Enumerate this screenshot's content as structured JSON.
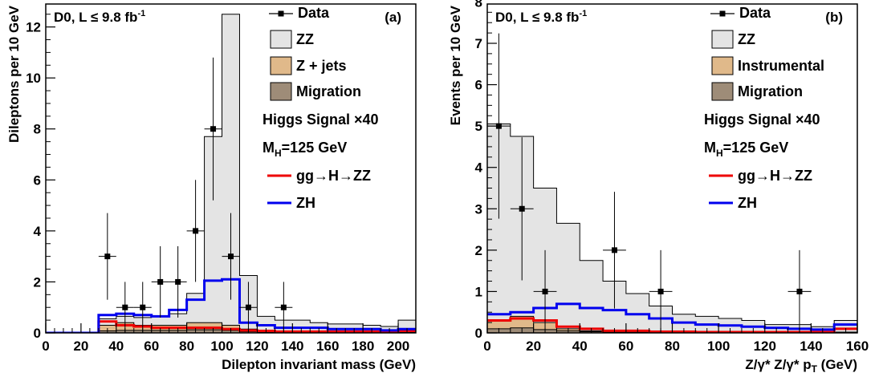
{
  "chart_data": [
    {
      "type": "histogram",
      "panel": "(a)",
      "xlabel": "Dilepton invariant mass (GeV)",
      "ylabel": "Dileptons per 10 GeV",
      "xlim": [
        0,
        210
      ],
      "ylim": [
        0,
        12.9
      ],
      "xticks": [
        0,
        20,
        40,
        60,
        80,
        100,
        120,
        140,
        160,
        180,
        200
      ],
      "yticks": [
        0,
        2,
        4,
        6,
        8,
        10,
        12
      ],
      "experiment_label": "D0, L ≤ 9.8 fb",
      "lumi_superscript": "-1",
      "legend": {
        "data": "Data",
        "zz": "ZZ",
        "bkg2": "Z + jets",
        "migration": "Migration",
        "signal_title": "Higgs Signal ×40",
        "mass_label": "M",
        "mass_sub": "H",
        "mass_value": "=125 GeV",
        "ggh": "gg→H→ZZ",
        "zh": "ZH"
      },
      "bins": [
        0,
        30,
        40,
        50,
        60,
        70,
        80,
        90,
        100,
        110,
        120,
        130,
        140,
        150,
        160,
        170,
        180,
        190,
        200,
        210
      ],
      "stack_total": [
        0,
        0.55,
        0.65,
        0.6,
        0.65,
        0.75,
        1.55,
        7.7,
        12.5,
        2.25,
        0.65,
        0.5,
        0.5,
        0.4,
        0.35,
        0.35,
        0.3,
        0.25,
        0.5
      ],
      "bkg2_total": [
        0,
        0.3,
        0.4,
        0.3,
        0.3,
        0.3,
        0.4,
        0.4,
        0.3,
        0.15,
        0.1,
        0.05,
        0.05,
        0.05,
        0.05,
        0.05,
        0.05,
        0.05,
        0.05
      ],
      "migration_total": [
        0,
        0.08,
        0.1,
        0.1,
        0.1,
        0.1,
        0.12,
        0.12,
        0.1,
        0.05,
        0.03,
        0.02,
        0.02,
        0.02,
        0.02,
        0.02,
        0.02,
        0.02,
        0.02
      ],
      "ggh": [
        0,
        0.45,
        0.3,
        0.25,
        0.2,
        0.2,
        0.2,
        0.2,
        0.15,
        0.1,
        0.08,
        0.05,
        0.05,
        0.05,
        0.05,
        0.05,
        0.05,
        0.05,
        0.08
      ],
      "zh": [
        0,
        0.7,
        0.75,
        0.7,
        0.65,
        0.9,
        1.3,
        2.05,
        2.1,
        0.4,
        0.3,
        0.2,
        0.2,
        0.2,
        0.15,
        0.15,
        0.15,
        0.1,
        0.15
      ],
      "points": [
        {
          "x": 35,
          "y": 3,
          "err": 1.7
        },
        {
          "x": 45,
          "y": 1,
          "err": 1.0
        },
        {
          "x": 55,
          "y": 1,
          "err": 1.0
        },
        {
          "x": 65,
          "y": 2,
          "err": 1.4
        },
        {
          "x": 75,
          "y": 2,
          "err": 1.4
        },
        {
          "x": 85,
          "y": 4,
          "err": 2.0
        },
        {
          "x": 95,
          "y": 8,
          "err": 2.8
        },
        {
          "x": 105,
          "y": 3,
          "err": 1.7
        },
        {
          "x": 115,
          "y": 1,
          "err": 1.0
        },
        {
          "x": 135,
          "y": 1,
          "err": 1.0
        }
      ]
    },
    {
      "type": "histogram",
      "panel": "(b)",
      "xlabel": "Z/γ* Z/γ* p",
      "xlabel_sub": "T",
      "xlabel_unit": " (GeV)",
      "ylabel": "Events per 10 GeV",
      "xlim": [
        0,
        160
      ],
      "ylim": [
        0,
        7.95
      ],
      "xticks": [
        0,
        20,
        40,
        60,
        80,
        100,
        120,
        140,
        160
      ],
      "yticks": [
        0,
        1,
        2,
        3,
        4,
        5,
        6,
        7,
        8
      ],
      "experiment_label": "D0, L ≤ 9.8 fb",
      "lumi_superscript": "-1",
      "legend": {
        "data": "Data",
        "zz": "ZZ",
        "bkg2": "Instrumental",
        "migration": "Migration",
        "signal_title": "Higgs Signal ×40",
        "mass_label": "M",
        "mass_sub": "H",
        "mass_value": "=125 GeV",
        "ggh": "gg→H→ZZ",
        "zh": "ZH"
      },
      "bins": [
        0,
        10,
        20,
        30,
        40,
        50,
        60,
        70,
        80,
        90,
        100,
        110,
        120,
        130,
        140,
        150,
        160
      ],
      "stack_total": [
        5.05,
        4.75,
        3.5,
        2.65,
        1.75,
        1.25,
        0.95,
        0.65,
        0.45,
        0.4,
        0.35,
        0.3,
        0.2,
        0.2,
        0.15,
        0.3
      ],
      "bkg2_total": [
        0.3,
        0.4,
        0.25,
        0.1,
        0.05,
        0.05,
        0.03,
        0.02,
        0.02,
        0.02,
        0.02,
        0.02,
        0.02,
        0.02,
        0.02,
        0.02
      ],
      "migration_total": [
        0.1,
        0.12,
        0.08,
        0.05,
        0.03,
        0.02,
        0.02,
        0.01,
        0.01,
        0.01,
        0.01,
        0.01,
        0.01,
        0.01,
        0.01,
        0.01
      ],
      "ggh": [
        0.3,
        0.35,
        0.3,
        0.15,
        0.1,
        0.05,
        0.05,
        0.03,
        0.03,
        0.02,
        0.02,
        0.02,
        0.02,
        0.02,
        0.02,
        0.1
      ],
      "zh": [
        0.45,
        0.5,
        0.6,
        0.7,
        0.6,
        0.55,
        0.45,
        0.35,
        0.25,
        0.2,
        0.18,
        0.15,
        0.12,
        0.1,
        0.08,
        0.2
      ],
      "points": [
        {
          "x": 5,
          "y": 5,
          "err": 2.24
        },
        {
          "x": 15,
          "y": 3,
          "err": 1.73
        },
        {
          "x": 25,
          "y": 1,
          "err": 1.0
        },
        {
          "x": 55,
          "y": 2,
          "err": 1.41
        },
        {
          "x": 75,
          "y": 1,
          "err": 1.0
        },
        {
          "x": 135,
          "y": 1,
          "err": 1.0
        }
      ]
    }
  ],
  "colors": {
    "zz_fill": "#e4e4e4",
    "bkg2_fill": "#e0b98a",
    "migration_fill": "#9e8c78",
    "ggh_line": "#ee0000",
    "zh_line": "#0000ee",
    "data_marker": "#000000"
  }
}
